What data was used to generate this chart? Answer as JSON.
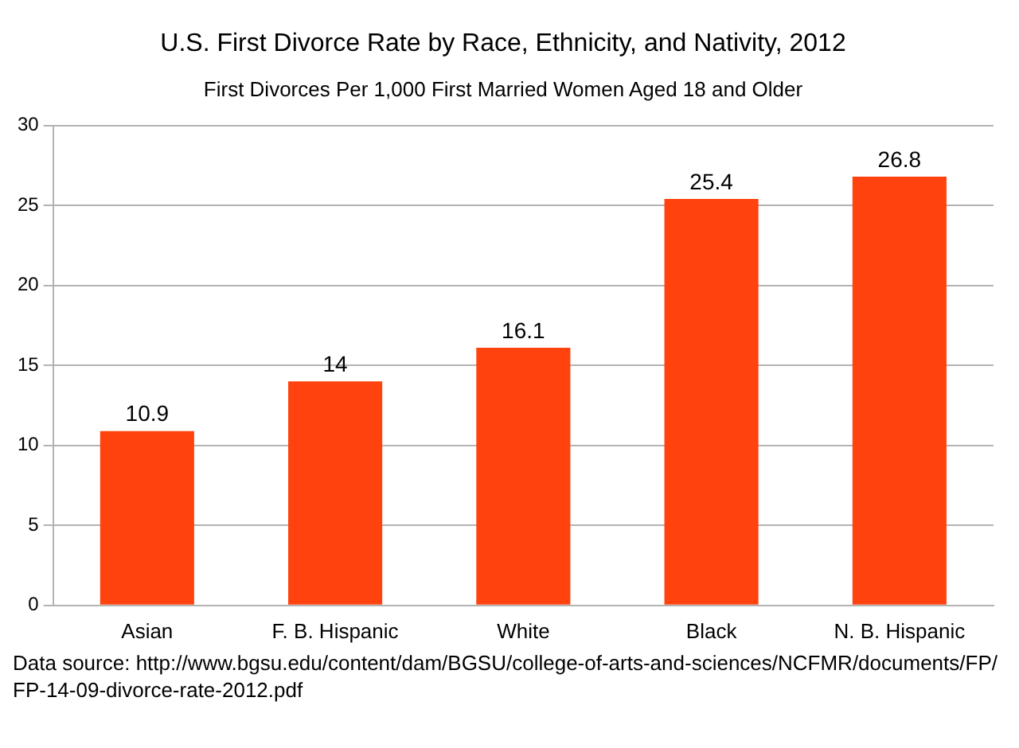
{
  "chart_data": {
    "type": "bar",
    "title": "U.S. First Divorce Rate by Race, Ethnicity, and Nativity, 2012",
    "subtitle": "First Divorces Per 1,000 First Married Women Aged 18 and Older",
    "categories": [
      "Asian",
      "F. B. Hispanic",
      "White",
      "Black",
      "N. B. Hispanic"
    ],
    "values": [
      10.9,
      14,
      16.1,
      25.4,
      26.8
    ],
    "color": "#ff420e",
    "ylim": [
      0,
      30
    ],
    "yticks": [
      0,
      5,
      10,
      15,
      20,
      25,
      30
    ],
    "grid": "y",
    "data_labels": true,
    "annotations": [
      "Data source:  http://www.bgsu.edu/content/dam/BGSU/college-of-arts-and-sciences/NCFMR/documents/FP/FP-14-09-divorce-rate-2012.pdf"
    ]
  }
}
